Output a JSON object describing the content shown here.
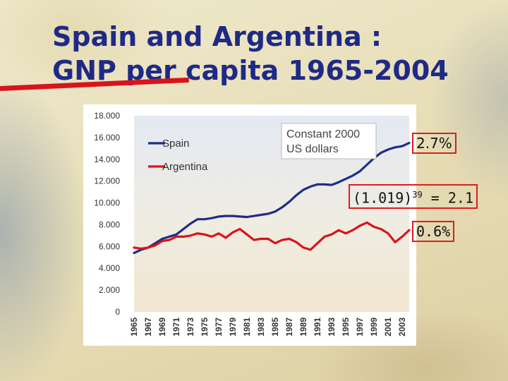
{
  "slide": {
    "title_line1": "Spain and Argentina :",
    "title_line2": "GNP per capita 1965-2004"
  },
  "annotations": {
    "spain_growth": "2.7%",
    "compound_base": "(1.019)",
    "compound_exp": "39",
    "compound_result": "= 2.1",
    "argentina_growth": "0.6%"
  },
  "chart_data": {
    "type": "line",
    "note_line1": "Constant 2000",
    "note_line2": "US dollars",
    "legend_position": "top-left",
    "ylim": [
      0,
      18000
    ],
    "y_ticks": [
      {
        "value": 0,
        "label": "0"
      },
      {
        "value": 2000,
        "label": "2.000"
      },
      {
        "value": 4000,
        "label": "4.000"
      },
      {
        "value": 6000,
        "label": "6.000"
      },
      {
        "value": 8000,
        "label": "8.000"
      },
      {
        "value": 10000,
        "label": "10.000"
      },
      {
        "value": 12000,
        "label": "12.000"
      },
      {
        "value": 14000,
        "label": "14.000"
      },
      {
        "value": 16000,
        "label": "16.000"
      },
      {
        "value": 18000,
        "label": "18.000"
      }
    ],
    "x": [
      1965,
      1966,
      1967,
      1968,
      1969,
      1970,
      1971,
      1972,
      1973,
      1974,
      1975,
      1976,
      1977,
      1978,
      1979,
      1980,
      1981,
      1982,
      1983,
      1984,
      1985,
      1986,
      1987,
      1988,
      1989,
      1990,
      1991,
      1992,
      1993,
      1994,
      1995,
      1996,
      1997,
      1998,
      1999,
      2000,
      2001,
      2002,
      2003,
      2004
    ],
    "x_tick_labels": [
      "1965",
      "1967",
      "1969",
      "1971",
      "1973",
      "1975",
      "1977",
      "1979",
      "1981",
      "1983",
      "1985",
      "1987",
      "1989",
      "1991",
      "1993",
      "1995",
      "1997",
      "1999",
      "2001",
      "2003"
    ],
    "series": [
      {
        "name": "Spain",
        "color": "#1f2d86",
        "values": [
          5400,
          5700,
          5900,
          6300,
          6700,
          6900,
          7100,
          7600,
          8100,
          8500,
          8500,
          8600,
          8750,
          8800,
          8800,
          8750,
          8700,
          8800,
          8900,
          9000,
          9200,
          9600,
          10100,
          10700,
          11200,
          11500,
          11700,
          11700,
          11650,
          11900,
          12200,
          12500,
          12900,
          13500,
          14100,
          14600,
          14900,
          15100,
          15200,
          15500
        ]
      },
      {
        "name": "Argentina",
        "color": "#d8141a",
        "values": [
          5900,
          5800,
          5900,
          6100,
          6500,
          6600,
          6900,
          6900,
          7000,
          7200,
          7100,
          6900,
          7200,
          6800,
          7300,
          7600,
          7100,
          6600,
          6700,
          6700,
          6300,
          6600,
          6700,
          6400,
          5900,
          5700,
          6300,
          6900,
          7100,
          7500,
          7200,
          7500,
          7900,
          8200,
          7800,
          7600,
          7200,
          6400,
          6900,
          7500
        ]
      }
    ]
  }
}
